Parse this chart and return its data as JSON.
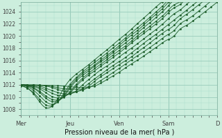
{
  "bg_color": "#cceedd",
  "plot_bg_color": "#cceedd",
  "grid_major_color": "#99ccbb",
  "grid_minor_color": "#aaddcc",
  "line_color": "#1a5c28",
  "title": "Pression niveau de la mer( hPa )",
  "ylim": [
    1007.0,
    1025.5
  ],
  "yticks": [
    1008,
    1010,
    1012,
    1014,
    1016,
    1018,
    1020,
    1022,
    1024
  ],
  "xtick_labels": [
    "Mer",
    "Jeu",
    "Ven",
    "Sam",
    "D"
  ],
  "xtick_positions": [
    0,
    24,
    48,
    72,
    96
  ],
  "n_points": 97,
  "figsize": [
    3.2,
    2.0
  ],
  "dpi": 100
}
